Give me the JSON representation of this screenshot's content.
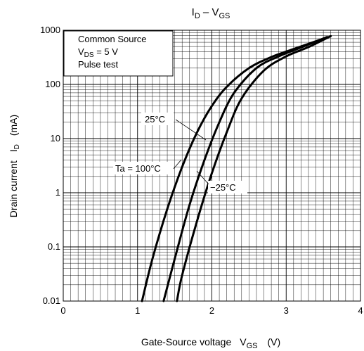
{
  "chart_data": {
    "type": "line",
    "title": {
      "main": "I",
      "main_sub": "D",
      "sep": " – V",
      "sep_sub": "GS"
    },
    "xlabel": {
      "text": "Gate-Source voltage",
      "sym": "V",
      "sym_sub": "GS",
      "unit": "(V)"
    },
    "ylabel": {
      "text": "Drain current",
      "sym": "I",
      "sym_sub": "D",
      "unit": "(mA)"
    },
    "xlim": [
      0,
      4
    ],
    "ylim": [
      0.01,
      1000
    ],
    "yscale": "log",
    "x_ticks": [
      "0",
      "1",
      "2",
      "3",
      "4"
    ],
    "y_ticks": [
      "0.01",
      "0.1",
      "1",
      "10",
      "100",
      "1000"
    ],
    "grid": true,
    "conditions": {
      "line1": "Common Source",
      "line2_pre": "V",
      "line2_sub": "DS",
      "line2_post": " = 5 V",
      "line3": "Pulse test"
    },
    "series": [
      {
        "name": "Ta = 100°C",
        "x": [
          1.06,
          1.2,
          1.4,
          1.6,
          1.8,
          2.0,
          2.2,
          2.5,
          2.8,
          3.1,
          3.5
        ],
        "y": [
          0.01,
          0.06,
          0.5,
          3.0,
          13,
          40,
          90,
          200,
          320,
          450,
          700
        ]
      },
      {
        "name": "25°C",
        "x": [
          1.35,
          1.5,
          1.7,
          1.9,
          2.1,
          2.3,
          2.6,
          2.9,
          3.2,
          3.55
        ],
        "y": [
          0.01,
          0.06,
          0.6,
          4.0,
          20,
          70,
          200,
          330,
          480,
          750
        ]
      },
      {
        "name": "−25°C",
        "x": [
          1.53,
          1.6,
          1.8,
          2.0,
          2.2,
          2.4,
          2.7,
          3.0,
          3.3,
          3.6
        ],
        "y": [
          0.01,
          0.03,
          0.3,
          2.3,
          13,
          55,
          180,
          330,
          490,
          780
        ]
      }
    ]
  }
}
